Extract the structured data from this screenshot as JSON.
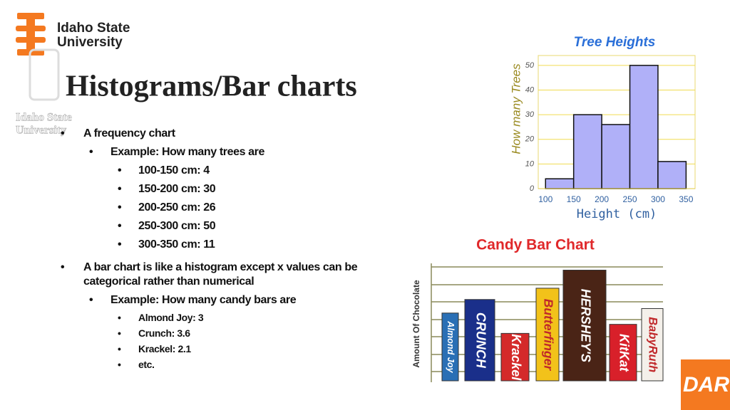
{
  "logo": {
    "line1": "Idaho State",
    "line2": "University"
  },
  "watermark": {
    "line1": "Idaho State",
    "line2": "University"
  },
  "title": "Histograms/Bar charts",
  "bullets": [
    {
      "text": "A frequency chart",
      "children": [
        {
          "text": "Example: How many trees are",
          "children": [
            {
              "text": "100-150 cm: 4"
            },
            {
              "text": "150-200 cm: 30"
            },
            {
              "text": "200-250 cm: 26"
            },
            {
              "text": "250-300 cm: 50"
            },
            {
              "text": "300-350 cm: 11"
            }
          ]
        }
      ]
    },
    {
      "text": "A bar chart is like a histogram except x values can be categorical rather than numerical",
      "children": [
        {
          "text": "Example: How many candy bars are",
          "children": [
            {
              "text": "Almond Joy: 3"
            },
            {
              "text": "Crunch: 3.6"
            },
            {
              "text": "Krackel: 2.1"
            },
            {
              "text": "etc."
            }
          ]
        }
      ]
    }
  ],
  "chart_data": [
    {
      "type": "histogram",
      "title": "Tree Heights",
      "x_label": "Height (cm)",
      "y_label": "How many Trees",
      "bins": [
        100,
        150,
        200,
        250,
        300,
        350
      ],
      "values": [
        4,
        30,
        26,
        50,
        11
      ],
      "color": "#b0b0f8",
      "xlim": [
        87,
        366
      ],
      "xticks": [
        100,
        150,
        200,
        250,
        300,
        350
      ],
      "ylim": [
        0,
        54
      ],
      "yticks": [
        0,
        10,
        20,
        30,
        40,
        50
      ],
      "grid": true
    },
    {
      "type": "bar",
      "title": "Candy Bar Chart",
      "y_label": "Amount Of Chocolate",
      "categories": [
        "Almond Joy",
        "CRUNCH",
        "Krackel",
        "Butterfinger",
        "HERSHEY'S",
        "KitKat",
        "BabyRuth"
      ],
      "values": [
        3,
        3.6,
        2.1,
        4.1,
        4.9,
        2.5,
        3.2
      ],
      "colors": [
        "#2a6fb5",
        "#1a2f8a",
        "#d42a2a",
        "#f2c21a",
        "#4a2416",
        "#d8202a",
        "#f4f0ea"
      ],
      "ylim": [
        0,
        5.2
      ]
    }
  ],
  "corner_badge": "DAR"
}
